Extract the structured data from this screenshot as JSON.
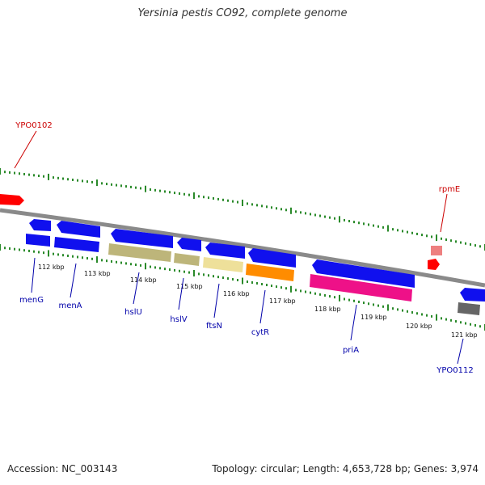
{
  "title": "Yersinia pestis CO92, complete genome",
  "footer": {
    "accession": "Accession: NC_003143",
    "summary": "Topology: circular; Length: 4,653,728 bp; Genes: 3,974"
  },
  "ticks": [
    "112 kbp",
    "113 kbp",
    "114 kbp",
    "115 kbp",
    "116 kbp",
    "117 kbp",
    "118 kbp",
    "119 kbp",
    "120 kbp",
    "121 kbp"
  ],
  "genes": [
    {
      "name": "YPO0102",
      "color": "#ff0000"
    },
    {
      "name": "rpmE",
      "color": "#cc0000"
    },
    {
      "name": "menG",
      "color": "#0000aa"
    },
    {
      "name": "menA",
      "color": "#0000aa"
    },
    {
      "name": "hslU",
      "color": "#0000aa"
    },
    {
      "name": "hslV",
      "color": "#0000aa"
    },
    {
      "name": "ftsN",
      "color": "#0000aa"
    },
    {
      "name": "cytR",
      "color": "#0000aa"
    },
    {
      "name": "priA",
      "color": "#0000aa"
    },
    {
      "name": "YPO0112",
      "color": "#0000aa"
    }
  ],
  "colors": {
    "forward_gene": "#1010ee",
    "backbone": "#8a8a8a",
    "tick": "#2a8a2a",
    "hslU_bar": "#bdb57a",
    "hslV_bar": "#bdb57a",
    "ftsN_bar": "#eee09a",
    "cytR_bar": "#ff8c00",
    "priA_bar": "#ee1188",
    "ypo0112_bar": "#666666",
    "red_arrow": "#ff0000",
    "rpmE_box": "#ee8080"
  }
}
